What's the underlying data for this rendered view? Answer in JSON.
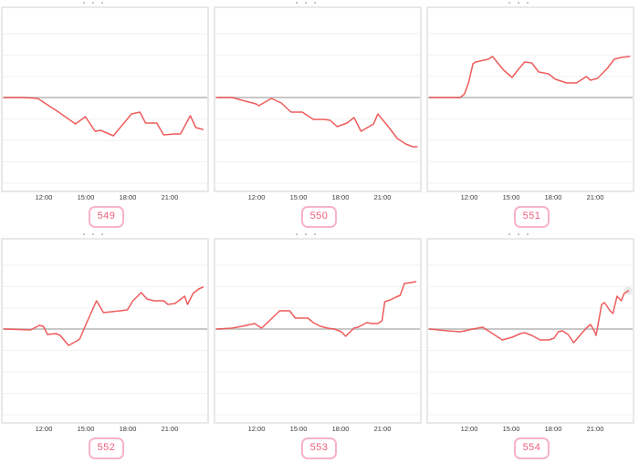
{
  "x_ticks": [
    "12:00",
    "15:00",
    "18:00",
    "21:00"
  ],
  "colors": {
    "line": "#ee5c5c",
    "zero_line": "#c8c8c8",
    "grid_line": "#f2f2f2",
    "plot_border": "#e8e8e8",
    "badge_border": "#f8b3c6",
    "badge_text": "#ef5d7d",
    "tick_text": "#3a3a3a",
    "end_marker": "#e9e9e9"
  },
  "chart_data": [
    {
      "type": "line",
      "label": "549",
      "xlabel": "",
      "ylabel": "",
      "x_tick_labels": [
        "12:00",
        "15:00",
        "18:00",
        "21:00"
      ],
      "x_range_hours": [
        9.0,
        23.75
      ],
      "zero_baseline": true,
      "y_units": "unlabeled (offset from zero line)",
      "end_marker": false,
      "points": [
        [
          9.1,
          0
        ],
        [
          10.5,
          0
        ],
        [
          11.5,
          -1
        ],
        [
          12.9,
          -15
        ],
        [
          14.2,
          -29
        ],
        [
          14.9,
          -21
        ],
        [
          15.6,
          -37
        ],
        [
          16.0,
          -36
        ],
        [
          16.9,
          -42
        ],
        [
          18.2,
          -18
        ],
        [
          18.8,
          -16
        ],
        [
          19.2,
          -28
        ],
        [
          20.0,
          -28
        ],
        [
          20.5,
          -41
        ],
        [
          21.3,
          -40
        ],
        [
          21.7,
          -40
        ],
        [
          22.4,
          -20
        ],
        [
          22.8,
          -33
        ],
        [
          23.3,
          -35
        ]
      ]
    },
    {
      "type": "line",
      "label": "550",
      "xlabel": "",
      "ylabel": "",
      "x_tick_labels": [
        "12:00",
        "15:00",
        "18:00",
        "21:00"
      ],
      "x_range_hours": [
        9.0,
        23.75
      ],
      "zero_baseline": true,
      "y_units": "unlabeled (offset from zero line)",
      "end_marker": false,
      "points": [
        [
          9.1,
          0
        ],
        [
          10.2,
          0
        ],
        [
          10.9,
          -3
        ],
        [
          11.9,
          -7
        ],
        [
          12.1,
          -9
        ],
        [
          13.0,
          -1
        ],
        [
          13.7,
          -6
        ],
        [
          14.4,
          -16
        ],
        [
          15.2,
          -16
        ],
        [
          16.0,
          -24
        ],
        [
          16.8,
          -24
        ],
        [
          17.2,
          -25
        ],
        [
          17.7,
          -32
        ],
        [
          18.4,
          -28
        ],
        [
          18.9,
          -22
        ],
        [
          19.4,
          -37
        ],
        [
          20.3,
          -29
        ],
        [
          20.6,
          -18
        ],
        [
          21.3,
          -31
        ],
        [
          22.0,
          -45
        ],
        [
          22.6,
          -51
        ],
        [
          23.1,
          -54
        ],
        [
          23.4,
          -54
        ]
      ]
    },
    {
      "type": "line",
      "label": "551",
      "xlabel": "",
      "ylabel": "",
      "x_tick_labels": [
        "12:00",
        "15:00",
        "18:00",
        "21:00"
      ],
      "x_range_hours": [
        9.0,
        23.75
      ],
      "zero_baseline": true,
      "y_units": "unlabeled (offset from zero line)",
      "end_marker": false,
      "points": [
        [
          9.1,
          0
        ],
        [
          11.3,
          0
        ],
        [
          11.6,
          4
        ],
        [
          11.9,
          17
        ],
        [
          12.2,
          37
        ],
        [
          12.4,
          39
        ],
        [
          13.3,
          42
        ],
        [
          13.6,
          45
        ],
        [
          14.4,
          30
        ],
        [
          15.0,
          22
        ],
        [
          15.4,
          30
        ],
        [
          15.9,
          39
        ],
        [
          16.4,
          38
        ],
        [
          16.9,
          28
        ],
        [
          17.6,
          26
        ],
        [
          18.1,
          20
        ],
        [
          18.9,
          16
        ],
        [
          19.6,
          16
        ],
        [
          20.3,
          23
        ],
        [
          20.6,
          19
        ],
        [
          21.1,
          21
        ],
        [
          21.8,
          32
        ],
        [
          22.3,
          42
        ],
        [
          22.8,
          44
        ],
        [
          23.4,
          45
        ]
      ]
    },
    {
      "type": "line",
      "label": "552",
      "xlabel": "",
      "ylabel": "",
      "x_tick_labels": [
        "12:00",
        "15:00",
        "18:00",
        "21:00"
      ],
      "x_range_hours": [
        9.0,
        23.75
      ],
      "zero_baseline": true,
      "y_units": "unlabeled (offset from zero line)",
      "end_marker": false,
      "points": [
        [
          9.1,
          0
        ],
        [
          11.0,
          -1
        ],
        [
          11.6,
          4
        ],
        [
          11.9,
          3
        ],
        [
          12.2,
          -6
        ],
        [
          12.8,
          -5
        ],
        [
          13.1,
          -7
        ],
        [
          13.7,
          -18
        ],
        [
          14.3,
          -13
        ],
        [
          14.5,
          -11
        ],
        [
          15.0,
          7
        ],
        [
          15.7,
          31
        ],
        [
          16.2,
          18
        ],
        [
          16.8,
          19
        ],
        [
          17.4,
          20
        ],
        [
          17.9,
          21
        ],
        [
          18.3,
          31
        ],
        [
          18.9,
          40
        ],
        [
          19.3,
          33
        ],
        [
          19.8,
          31
        ],
        [
          20.5,
          31
        ],
        [
          20.8,
          27
        ],
        [
          21.3,
          28
        ],
        [
          22.0,
          36
        ],
        [
          22.2,
          27
        ],
        [
          22.6,
          39
        ],
        [
          23.0,
          44
        ],
        [
          23.3,
          46
        ]
      ]
    },
    {
      "type": "line",
      "label": "553",
      "xlabel": "",
      "ylabel": "",
      "x_tick_labels": [
        "12:00",
        "15:00",
        "18:00",
        "21:00"
      ],
      "x_range_hours": [
        9.0,
        23.75
      ],
      "zero_baseline": true,
      "y_units": "unlabeled (offset from zero line)",
      "end_marker": false,
      "points": [
        [
          9.1,
          0
        ],
        [
          10.2,
          1
        ],
        [
          10.9,
          3
        ],
        [
          11.8,
          6
        ],
        [
          12.3,
          1
        ],
        [
          13.6,
          20
        ],
        [
          14.3,
          20
        ],
        [
          14.7,
          12
        ],
        [
          15.2,
          12
        ],
        [
          15.6,
          12
        ],
        [
          16.0,
          7
        ],
        [
          16.5,
          3
        ],
        [
          17.0,
          1
        ],
        [
          17.5,
          0
        ],
        [
          18.0,
          -3
        ],
        [
          18.3,
          -8
        ],
        [
          18.9,
          1
        ],
        [
          19.2,
          2
        ],
        [
          19.8,
          7
        ],
        [
          20.2,
          6
        ],
        [
          20.6,
          6
        ],
        [
          20.9,
          9
        ],
        [
          21.1,
          30
        ],
        [
          21.5,
          32
        ],
        [
          21.9,
          35
        ],
        [
          22.2,
          37
        ],
        [
          22.5,
          50
        ],
        [
          23.0,
          51
        ],
        [
          23.3,
          52
        ]
      ]
    },
    {
      "type": "line",
      "label": "554",
      "xlabel": "",
      "ylabel": "",
      "x_tick_labels": [
        "12:00",
        "15:00",
        "18:00",
        "21:00"
      ],
      "x_range_hours": [
        9.0,
        23.75
      ],
      "zero_baseline": true,
      "y_units": "unlabeled (offset from zero line)",
      "end_marker": true,
      "points": [
        [
          9.1,
          0
        ],
        [
          10.4,
          -2
        ],
        [
          11.3,
          -3
        ],
        [
          12.2,
          0
        ],
        [
          12.9,
          2
        ],
        [
          13.7,
          -6
        ],
        [
          14.3,
          -12
        ],
        [
          15.0,
          -9
        ],
        [
          15.6,
          -5
        ],
        [
          15.9,
          -4
        ],
        [
          16.4,
          -7
        ],
        [
          17.0,
          -12
        ],
        [
          17.6,
          -12
        ],
        [
          18.0,
          -10
        ],
        [
          18.3,
          -3
        ],
        [
          18.6,
          -2
        ],
        [
          19.0,
          -6
        ],
        [
          19.4,
          -15
        ],
        [
          19.9,
          -6
        ],
        [
          20.3,
          1
        ],
        [
          20.6,
          5
        ],
        [
          20.9,
          -3
        ],
        [
          21.0,
          -7
        ],
        [
          21.4,
          27
        ],
        [
          21.6,
          29
        ],
        [
          22.0,
          20
        ],
        [
          22.2,
          17
        ],
        [
          22.5,
          36
        ],
        [
          22.8,
          31
        ],
        [
          23.0,
          39
        ],
        [
          23.3,
          42
        ]
      ]
    }
  ]
}
